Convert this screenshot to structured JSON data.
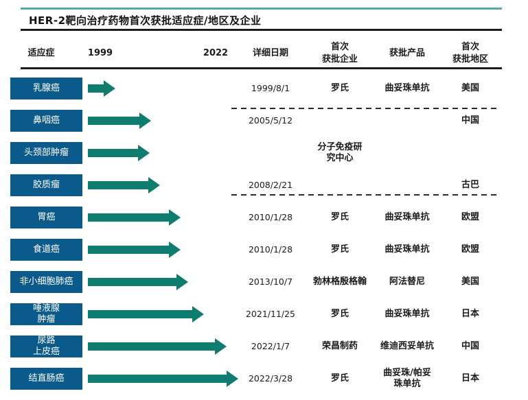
{
  "title": "HER-2靶向治疗药物首次获批适应症/地区及企业",
  "columns": {
    "indication": "适应症",
    "year_start": "1999",
    "year_end": "2022",
    "date": "详细日期",
    "company": "首次\n获批企业",
    "product": "获批产品",
    "region": "首次\n获批地区"
  },
  "rows": [
    {
      "indication": "乳腺癌",
      "date": "1999/8/1",
      "company": "罗氏",
      "product": "曲妥珠单抗",
      "region": "美国",
      "arrow_len": 40
    },
    {
      "indication": "鼻咽癌",
      "date": "2005/5/12",
      "company": "",
      "product": "",
      "region": "中国",
      "arrow_len": 92
    },
    {
      "indication": "头颈部肿瘤",
      "date": "",
      "company": "分子免疫研\n究中心",
      "product": "",
      "region": "",
      "arrow_len": 90
    },
    {
      "indication": "胶质瘤",
      "date": "2008/2/21",
      "company": "",
      "product": "",
      "region": "古巴",
      "arrow_len": 105
    },
    {
      "indication": "胃癌",
      "date": "2010/1/28",
      "company": "罗氏",
      "product": "曲妥珠单抗",
      "region": "欧盟",
      "arrow_len": 135
    },
    {
      "indication": "食道癌",
      "date": "2010/1/28",
      "company": "罗氏",
      "product": "曲妥珠单抗",
      "region": "欧盟",
      "arrow_len": 135
    },
    {
      "indication": "非小细胞肺癌",
      "date": "2013/10/7",
      "company": "勃林格殷格翰",
      "product": "阿法替尼",
      "region": "美国",
      "arrow_len": 146
    },
    {
      "indication": "唾液腺\n肿瘤",
      "date": "2021/11/25",
      "company": "罗氏",
      "product": "曲妥珠单抗",
      "region": "日本",
      "arrow_len": 169
    },
    {
      "indication": "尿路\n上皮癌",
      "date": "2022/1/7",
      "company": "荣昌制药",
      "product": "维迪西妥单抗",
      "region": "中国",
      "arrow_len": 202
    },
    {
      "indication": "结直肠癌",
      "date": "2022/3/28",
      "company": "罗氏",
      "product": "曲妥珠/帕妥\n珠单抗",
      "region": "日本",
      "arrow_len": 219
    }
  ],
  "colors": {
    "indication_box": "#0a5a8b",
    "arrow": "#0e7c6e",
    "top_rule": "#54a7b0",
    "rule": "#1a1a1a"
  },
  "chart_data": {
    "type": "table",
    "title": "HER-2靶向治疗药物首次获批适应症/地区及企业",
    "timeline": {
      "start": 1999,
      "end": 2022,
      "note": "arrow length encodes first-approval date between 1999 and 2022"
    },
    "columns": [
      "适应症",
      "详细日期",
      "首次获批企业",
      "获批产品",
      "首次获批地区"
    ],
    "rows": [
      [
        "乳腺癌",
        "1999/8/1",
        "罗氏",
        "曲妥珠单抗",
        "美国"
      ],
      [
        "鼻咽癌",
        "2005/5/12",
        "分子免疫研究中心",
        "",
        "中国"
      ],
      [
        "头颈部肿瘤",
        "",
        "分子免疫研究中心",
        "",
        ""
      ],
      [
        "胶质瘤",
        "2008/2/21",
        "分子免疫研究中心",
        "",
        "古巴"
      ],
      [
        "胃癌",
        "2010/1/28",
        "罗氏",
        "曲妥珠单抗",
        "欧盟"
      ],
      [
        "食道癌",
        "2010/1/28",
        "罗氏",
        "曲妥珠单抗",
        "欧盟"
      ],
      [
        "非小细胞肺癌",
        "2013/10/7",
        "勃林格殷格翰",
        "阿法替尼",
        "美国"
      ],
      [
        "唾液腺肿瘤",
        "2021/11/25",
        "罗氏",
        "曲妥珠单抗",
        "日本"
      ],
      [
        "尿路上皮癌",
        "2022/1/7",
        "荣昌制药",
        "维迪西妥单抗",
        "中国"
      ],
      [
        "结直肠癌",
        "2022/3/28",
        "罗氏",
        "曲妥珠/帕妥珠单抗",
        "日本"
      ]
    ]
  }
}
